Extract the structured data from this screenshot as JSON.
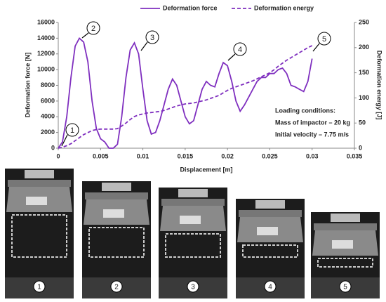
{
  "chart_data": {
    "type": "line",
    "x_label": "Displacement [m]",
    "y_label": "Deformation force [N]",
    "y2_label": "Deformation energy [J]",
    "x": [
      0,
      0.0005,
      0.001,
      0.0015,
      0.002,
      0.0025,
      0.003,
      0.0035,
      0.004,
      0.0045,
      0.005,
      0.0055,
      0.006,
      0.0065,
      0.007,
      0.0075,
      0.008,
      0.0085,
      0.009,
      0.0095,
      0.01,
      0.0105,
      0.011,
      0.0115,
      0.012,
      0.0125,
      0.013,
      0.0135,
      0.014,
      0.0145,
      0.015,
      0.0155,
      0.016,
      0.0165,
      0.017,
      0.0175,
      0.018,
      0.0185,
      0.019,
      0.0195,
      0.02,
      0.0205,
      0.021,
      0.0215,
      0.022,
      0.0225,
      0.023,
      0.0235,
      0.024,
      0.0245,
      0.025,
      0.0255,
      0.026,
      0.0265,
      0.027,
      0.0275,
      0.028,
      0.0285,
      0.029,
      0.0295,
      0.03
    ],
    "series": [
      {
        "name": "Deformation force",
        "color": "#7f2fbf",
        "dash": false,
        "values": [
          0,
          800,
          4000,
          9000,
          13000,
          14000,
          13500,
          11000,
          6000,
          2500,
          1200,
          800,
          0,
          0,
          500,
          4000,
          9000,
          12500,
          13400,
          12000,
          7500,
          3500,
          1800,
          2000,
          3500,
          5500,
          7500,
          8800,
          8000,
          6000,
          4000,
          3100,
          3500,
          5500,
          7500,
          8500,
          8000,
          7800,
          9500,
          10900,
          10500,
          8500,
          6000,
          4700,
          5500,
          6500,
          7500,
          8500,
          9000,
          9000,
          9500,
          9500,
          10000,
          10200,
          9500,
          8000,
          7800,
          7500,
          7200,
          8500,
          11400
        ]
      },
      {
        "name": "Deformation energy",
        "color": "#7f2fbf",
        "dash": true,
        "axis": "y2",
        "values": [
          0,
          2,
          5,
          9,
          15,
          21,
          27,
          31,
          35,
          37,
          38,
          38,
          38,
          38,
          39,
          44,
          50,
          57,
          63,
          66,
          68,
          70,
          71,
          72,
          73,
          75,
          78,
          81,
          84,
          86,
          88,
          89,
          90,
          92,
          94,
          96,
          99,
          102,
          105,
          110,
          115,
          119,
          122,
          125,
          128,
          131,
          134,
          138,
          142,
          146,
          150,
          156,
          163,
          169,
          175,
          180,
          185,
          190,
          195,
          200,
          204
        ]
      }
    ],
    "xlim": [
      0,
      0.035
    ],
    "xticks": [
      0,
      0.005,
      0.01,
      0.015,
      0.02,
      0.025,
      0.03,
      0.035
    ],
    "ylim": [
      0,
      16000
    ],
    "yticks": [
      0,
      2000,
      4000,
      6000,
      8000,
      10000,
      12000,
      14000,
      16000
    ],
    "y2lim": [
      0,
      250
    ],
    "y2ticks": [
      0,
      50,
      100,
      150,
      200,
      250
    ],
    "annotations": [
      "1",
      "2",
      "3",
      "4",
      "5"
    ],
    "notes": [
      "Loading conditions:",
      "Mass of impactor – 20 kg",
      "Initial velocity – 7.75 m/s"
    ],
    "legend": "top"
  },
  "photos": [
    {
      "label": "1"
    },
    {
      "label": "2"
    },
    {
      "label": "3"
    },
    {
      "label": "4"
    },
    {
      "label": "5"
    }
  ]
}
